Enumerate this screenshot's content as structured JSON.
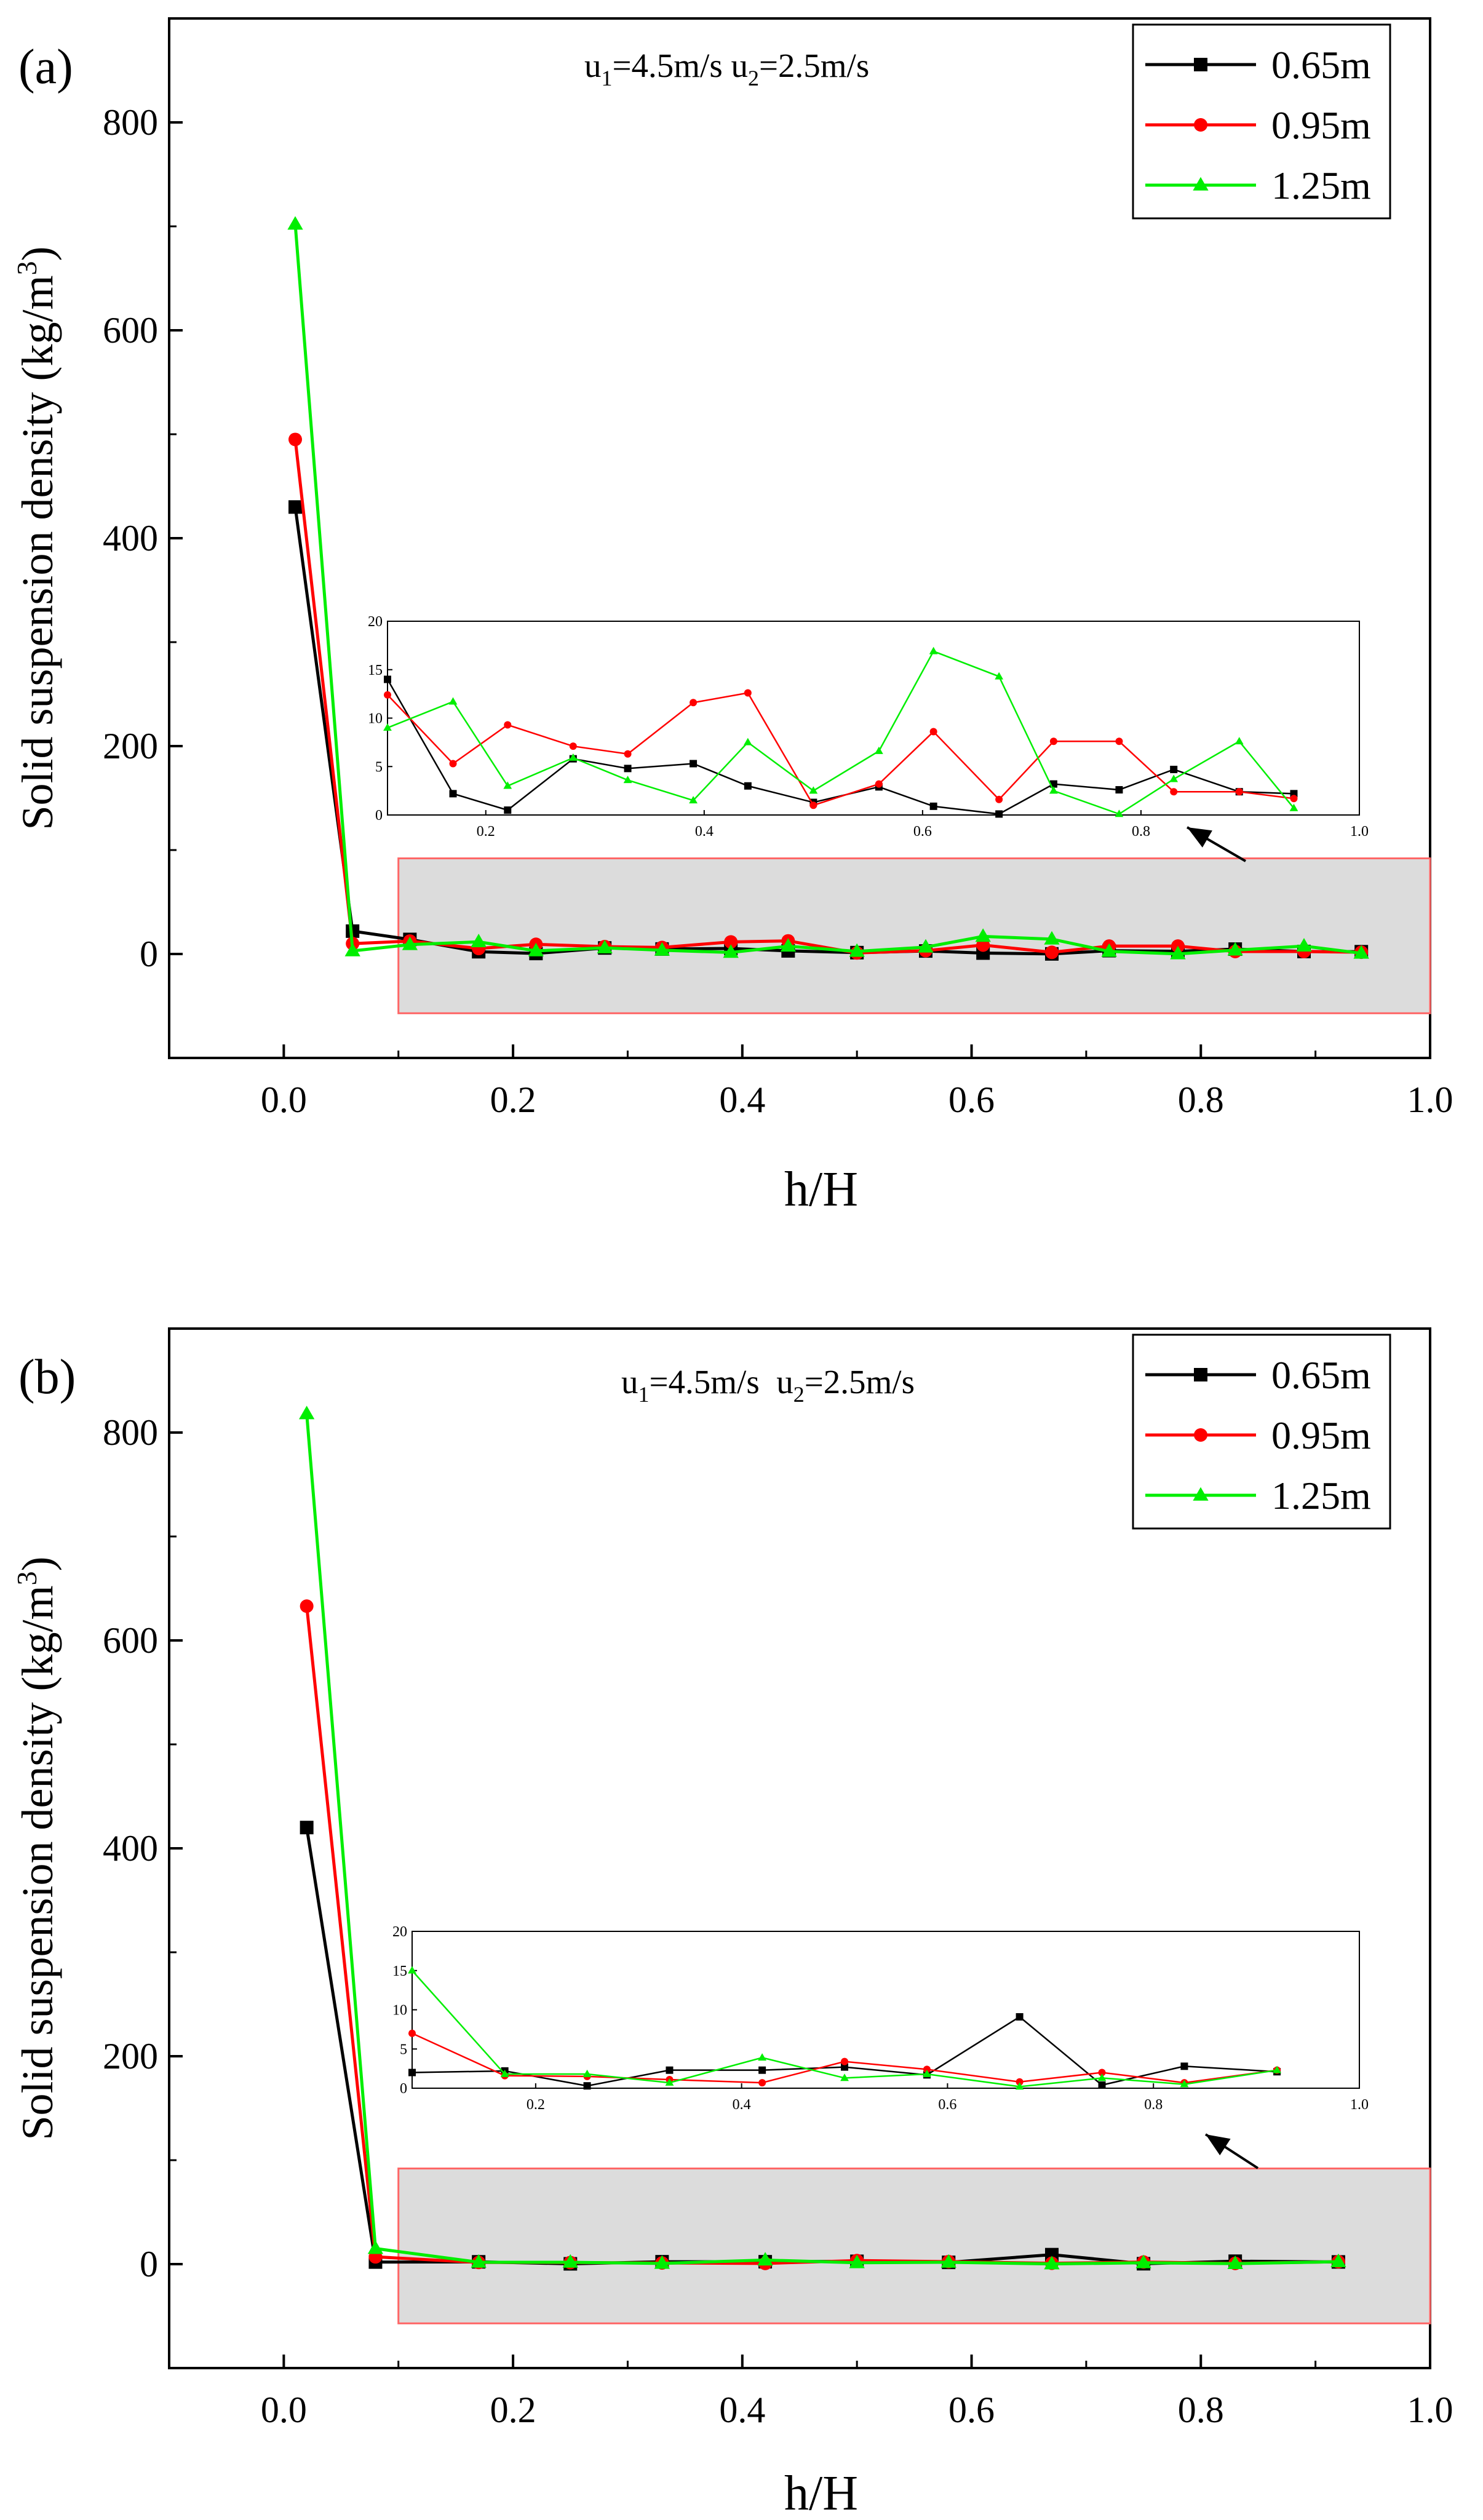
{
  "colors": {
    "s065": "#000000",
    "s095": "#ff0000",
    "s125": "#00ee00",
    "shade": "#dcdcdc",
    "shade_border": "#ff6666"
  },
  "legend": [
    "0.65m",
    "0.95m",
    "1.25m"
  ],
  "panels": [
    {
      "label": "(a)",
      "annotation": {
        "u1": "u",
        "u1_sub": "1",
        "u1_rest": "=4.5m/s u",
        "u2_sub": "2",
        "u2_rest": "=2.5m/s"
      },
      "xlabel": "h/H",
      "ylabel_main": "Solid suspension density (kg/m",
      "ylabel_sup": "3",
      "ylabel_end": ")"
    },
    {
      "label": "(b)",
      "annotation": {
        "u1": "u",
        "u1_sub": "1",
        "u1_rest": "=4.5m/s  u",
        "u2_sub": "2",
        "u2_rest": "=2.5m/s"
      },
      "xlabel": "h/H",
      "ylabel_main": "Solid suspension density (kg/m",
      "ylabel_sup": "3",
      "ylabel_end": ")"
    }
  ],
  "chart_data": [
    {
      "type": "line",
      "title": "(a) u1=4.5m/s u2=2.5m/s",
      "xlabel": "h/H",
      "ylabel": "Solid suspension density (kg/m3)",
      "xlim": [
        -0.1,
        1.0
      ],
      "ylim": [
        -100,
        900
      ],
      "xticks": [
        0.0,
        0.2,
        0.4,
        0.6,
        0.8,
        1.0
      ],
      "xtick_labels": [
        "0.0",
        "0.2",
        "0.4",
        "0.6",
        "0.8",
        "1.0"
      ],
      "yticks": [
        0,
        200,
        400,
        600,
        800
      ],
      "ytick_labels": [
        "0",
        "200",
        "400",
        "600",
        "800"
      ],
      "legend_position": "top-right",
      "shaded_region": {
        "x": [
          0.1,
          1.0
        ],
        "y": [
          -57,
          92
        ]
      },
      "series": [
        {
          "name": "0.65m",
          "marker": "square",
          "x": [
            0.01,
            0.06,
            0.11,
            0.17,
            0.22,
            0.28,
            0.33,
            0.39,
            0.44,
            0.5,
            0.56,
            0.61,
            0.67,
            0.72,
            0.78,
            0.83,
            0.89,
            0.94
          ],
          "y": [
            430,
            22,
            14,
            2.2,
            0.5,
            5.8,
            4.8,
            5.3,
            3.0,
            1.3,
            2.9,
            0.9,
            0.1,
            3.2,
            2.6,
            4.7,
            2.4,
            2.2
          ]
        },
        {
          "name": "0.95m",
          "marker": "circle",
          "x": [
            0.01,
            0.06,
            0.11,
            0.17,
            0.22,
            0.28,
            0.33,
            0.39,
            0.44,
            0.5,
            0.56,
            0.61,
            0.67,
            0.72,
            0.78,
            0.83,
            0.89,
            0.94
          ],
          "y": [
            495,
            10,
            12.4,
            5.3,
            9.3,
            7.1,
            6.3,
            11.6,
            12.6,
            1.0,
            3.2,
            8.6,
            1.6,
            7.6,
            7.6,
            2.4,
            2.4,
            1.7
          ]
        },
        {
          "name": "1.25m",
          "marker": "triangle",
          "x": [
            0.01,
            0.06,
            0.11,
            0.17,
            0.22,
            0.28,
            0.33,
            0.39,
            0.44,
            0.5,
            0.56,
            0.61,
            0.67,
            0.72,
            0.78,
            0.83,
            0.89,
            0.94
          ],
          "y": [
            702,
            3,
            9.0,
            11.7,
            3.0,
            5.9,
            3.6,
            1.5,
            7.5,
            2.5,
            6.6,
            16.9,
            14.3,
            2.5,
            0.1,
            3.7,
            7.6,
            0.7
          ]
        }
      ],
      "inset": {
        "xlim": [
          0.11,
          1.0
        ],
        "ylim": [
          0,
          20
        ],
        "xticks": [
          0.2,
          0.4,
          0.6,
          0.8,
          1.0
        ],
        "xtick_labels": [
          "0.2",
          "0.4",
          "0.6",
          "0.8",
          "1.0"
        ],
        "yticks": [
          0,
          5,
          10,
          15,
          20
        ],
        "ytick_labels": [
          "0",
          "5",
          "10",
          "15",
          "20"
        ],
        "from_index": 2
      }
    },
    {
      "type": "line",
      "title": "(b) u1=4.5m/s u2=2.5m/s",
      "xlabel": "h/H",
      "ylabel": "Solid suspension density (kg/m3)",
      "xlim": [
        -0.1,
        1.0
      ],
      "ylim": [
        -100,
        900
      ],
      "xticks": [
        0.0,
        0.2,
        0.4,
        0.6,
        0.8,
        1.0
      ],
      "xtick_labels": [
        "0.0",
        "0.2",
        "0.4",
        "0.6",
        "0.8",
        "1.0"
      ],
      "yticks": [
        0,
        200,
        400,
        600,
        800
      ],
      "ytick_labels": [
        "0",
        "200",
        "400",
        "600",
        "800"
      ],
      "legend_position": "top-right",
      "shaded_region": {
        "x": [
          0.1,
          1.0
        ],
        "y": [
          -57,
          92
        ]
      },
      "series": [
        {
          "name": "0.65m",
          "marker": "square",
          "x": [
            0.02,
            0.08,
            0.17,
            0.25,
            0.33,
            0.42,
            0.5,
            0.58,
            0.67,
            0.75,
            0.83,
            0.92
          ],
          "y": [
            420,
            2,
            2.2,
            0.3,
            2.3,
            2.3,
            2.7,
            1.7,
            9.1,
            0.4,
            2.8,
            2.1
          ]
        },
        {
          "name": "0.95m",
          "marker": "circle",
          "x": [
            0.02,
            0.08,
            0.17,
            0.25,
            0.33,
            0.42,
            0.5,
            0.58,
            0.67,
            0.75,
            0.83,
            0.92
          ],
          "y": [
            633,
            7,
            1.6,
            1.5,
            1.1,
            0.7,
            3.4,
            2.4,
            0.8,
            2.0,
            0.7,
            2.3
          ]
        },
        {
          "name": "1.25m",
          "marker": "triangle",
          "x": [
            0.02,
            0.08,
            0.17,
            0.25,
            0.33,
            0.42,
            0.5,
            0.58,
            0.67,
            0.75,
            0.83,
            0.92
          ],
          "y": [
            818,
            15,
            1.8,
            1.8,
            0.7,
            3.9,
            1.3,
            1.8,
            0.2,
            1.3,
            0.5,
            2.3
          ]
        }
      ],
      "inset": {
        "xlim": [
          0.08,
          1.0
        ],
        "ylim": [
          0,
          20
        ],
        "xticks": [
          0.2,
          0.4,
          0.6,
          0.8,
          1.0
        ],
        "xtick_labels": [
          "0.2",
          "0.4",
          "0.6",
          "0.8",
          "1.0"
        ],
        "yticks": [
          0,
          5,
          10,
          15,
          20
        ],
        "ytick_labels": [
          "0",
          "5",
          "10",
          "15",
          "20"
        ],
        "from_index": 1
      }
    }
  ]
}
